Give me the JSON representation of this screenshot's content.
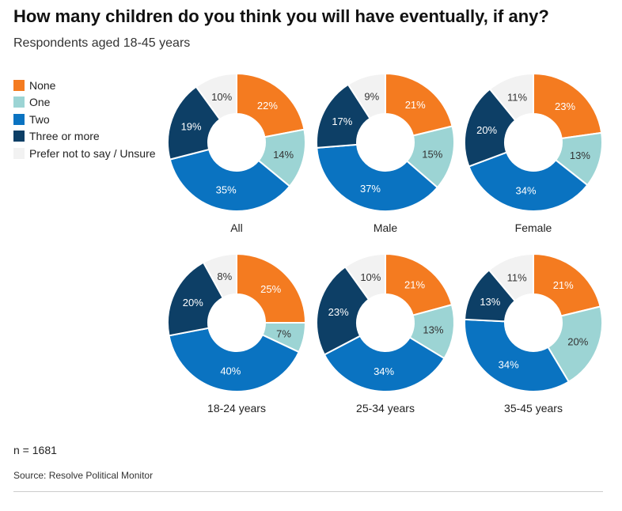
{
  "title": "How many children do you think you will have eventually, if any?",
  "subtitle": "Respondents aged 18-45 years",
  "note": "n = 1681",
  "source": "Source: Resolve Political Monitor",
  "legend": [
    {
      "label": "None",
      "color": "#F47B20"
    },
    {
      "label": "One",
      "color": "#9CD4D4"
    },
    {
      "label": "Two",
      "color": "#0A73C1"
    },
    {
      "label": "Three or more",
      "color": "#0D3F66"
    },
    {
      "label": "Prefer not to say / Unsure",
      "color": "#F2F2F2"
    }
  ],
  "chart_data": {
    "type": "pie",
    "variant": "donut",
    "categories": [
      "None",
      "One",
      "Two",
      "Three or more",
      "Prefer not to say / Unsure"
    ],
    "colors": [
      "#F47B20",
      "#9CD4D4",
      "#0A73C1",
      "#0D3F66",
      "#F2F2F2"
    ],
    "label_colors": [
      "#ffffff",
      "#333333",
      "#ffffff",
      "#ffffff",
      "#333333"
    ],
    "unit": "%",
    "legend_position": "top-left",
    "charts": [
      {
        "label": "All",
        "values": [
          22,
          14,
          35,
          19,
          10
        ]
      },
      {
        "label": "Male",
        "values": [
          21,
          15,
          37,
          17,
          9
        ]
      },
      {
        "label": "Female",
        "values": [
          23,
          13,
          34,
          20,
          11
        ]
      },
      {
        "label": "18-24 years",
        "values": [
          25,
          7,
          40,
          20,
          8
        ]
      },
      {
        "label": "25-34 years",
        "values": [
          21,
          13,
          34,
          23,
          10
        ]
      },
      {
        "label": "35-45 years",
        "values": [
          21,
          20,
          34,
          13,
          11
        ]
      }
    ]
  }
}
